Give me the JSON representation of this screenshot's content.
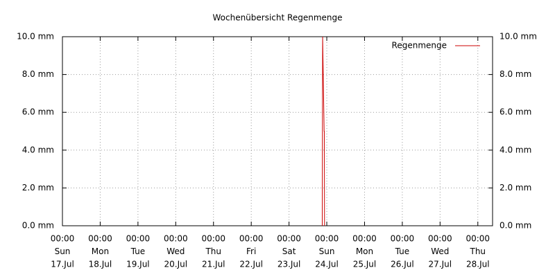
{
  "chart_data": {
    "type": "line",
    "title": "Wochenübersicht Regenmenge",
    "x": [
      23.88,
      23.89,
      23.93,
      23.935,
      23.94
    ],
    "series": [
      {
        "name": "Regenmenge",
        "color": "#cc0000",
        "values": [
          0,
          10,
          5,
          5,
          0
        ]
      }
    ],
    "xlim": [
      17,
      28.39
    ],
    "xticks": [
      {
        "value": 17,
        "label": [
          "00:00",
          "Sun",
          "17.Jul"
        ]
      },
      {
        "value": 18,
        "label": [
          "00:00",
          "Mon",
          "18.Jul"
        ]
      },
      {
        "value": 19,
        "label": [
          "00:00",
          "Tue",
          "19.Jul"
        ]
      },
      {
        "value": 20,
        "label": [
          "00:00",
          "Wed",
          "20.Jul"
        ]
      },
      {
        "value": 21,
        "label": [
          "00:00",
          "Thu",
          "21.Jul"
        ]
      },
      {
        "value": 22,
        "label": [
          "00:00",
          "Fri",
          "22.Jul"
        ]
      },
      {
        "value": 23,
        "label": [
          "00:00",
          "Sat",
          "23.Jul"
        ]
      },
      {
        "value": 24,
        "label": [
          "00:00",
          "Sun",
          "24.Jul"
        ]
      },
      {
        "value": 25,
        "label": [
          "00:00",
          "Mon",
          "25.Jul"
        ]
      },
      {
        "value": 26,
        "label": [
          "00:00",
          "Tue",
          "26.Jul"
        ]
      },
      {
        "value": 27,
        "label": [
          "00:00",
          "Wed",
          "27.Jul"
        ]
      },
      {
        "value": 28,
        "label": [
          "00:00",
          "Thu",
          "28.Jul"
        ]
      }
    ],
    "ylim": [
      0,
      10
    ],
    "yticks": [
      {
        "value": 0,
        "label": "0.0 mm"
      },
      {
        "value": 2,
        "label": "2.0 mm"
      },
      {
        "value": 4,
        "label": "4.0 mm"
      },
      {
        "value": 6,
        "label": "6.0 mm"
      },
      {
        "value": 8,
        "label": "8.0 mm"
      },
      {
        "value": 10,
        "label": "10.0 mm"
      }
    ],
    "y2lim": [
      0,
      10
    ],
    "y2ticks": [
      {
        "value": 0,
        "label": "0.0 mm"
      },
      {
        "value": 2,
        "label": "2.0 mm"
      },
      {
        "value": 4,
        "label": "4.0 mm"
      },
      {
        "value": 6,
        "label": "6.0 mm"
      },
      {
        "value": 8,
        "label": "8.0 mm"
      },
      {
        "value": 10,
        "label": "10.0 mm"
      }
    ],
    "grid": true,
    "legend": "top-right"
  }
}
